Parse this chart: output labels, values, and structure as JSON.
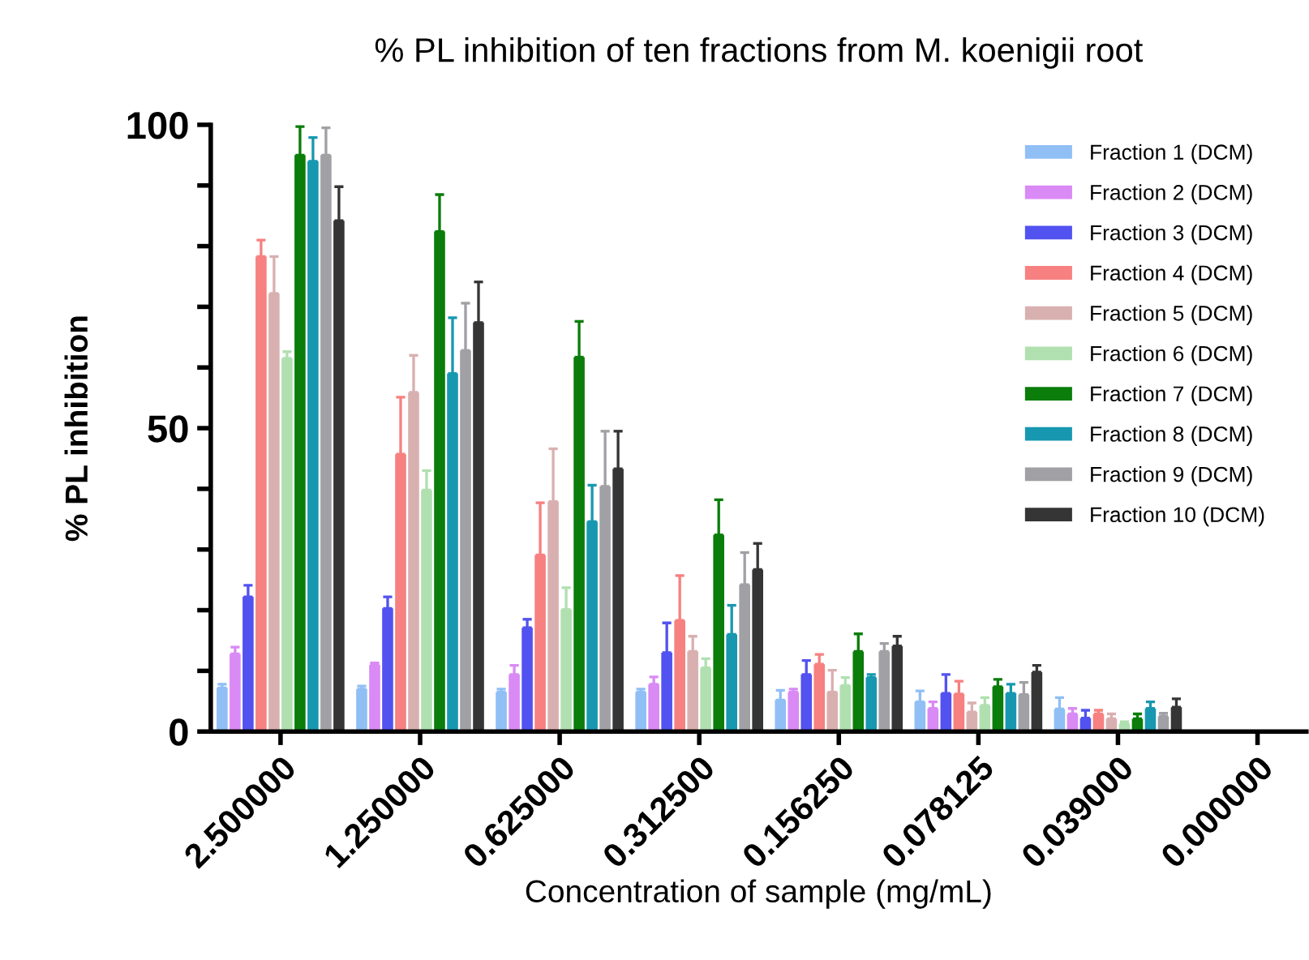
{
  "chart_data": {
    "type": "bar",
    "title": "% PL inhibition of ten fractions from M. koenigii root",
    "xlabel": "Concentration of sample (mg/mL)",
    "ylabel": "% PL inhibition",
    "categories": [
      "2.500000",
      "1.250000",
      "0.625000",
      "0.312500",
      "0.156250",
      "0.078125",
      "0.039000",
      "0.000000"
    ],
    "ylim": [
      0,
      100
    ],
    "yticks": [
      0,
      {
        "value": 10,
        "label": null
      },
      {
        "value": 20,
        "label": null
      },
      {
        "value": 30,
        "label": null
      },
      {
        "value": 40,
        "label": null
      },
      50,
      {
        "value": 60,
        "label": null
      },
      {
        "value": 70,
        "label": null
      },
      {
        "value": 80,
        "label": null
      },
      {
        "value": 90,
        "label": null
      },
      100
    ],
    "grid": false,
    "legend": "top right",
    "series": [
      {
        "name": "Fraction 1 (DCM)",
        "color": "#8fbff5",
        "values": [
          7.2,
          7.0,
          6.5,
          6.5,
          5.2,
          4.9,
          3.7,
          0
        ],
        "errors": [
          [
            7.2,
            7.8
          ],
          [
            7.0,
            7.5
          ],
          [
            6.5,
            7.0
          ],
          [
            6.5,
            7.0
          ],
          [
            5.2,
            6.8
          ],
          [
            4.9,
            6.7
          ],
          [
            3.7,
            5.6
          ],
          null
        ]
      },
      {
        "name": "Fraction 2 (DCM)",
        "color": "#d98af5",
        "values": [
          12.8,
          11.0,
          9.4,
          7.8,
          6.5,
          3.8,
          2.9,
          0
        ],
        "errors": [
          [
            12.8,
            13.9
          ],
          [
            11.0,
            11.3
          ],
          [
            9.4,
            10.9
          ],
          [
            7.8,
            9.0
          ],
          [
            6.5,
            7.0
          ],
          [
            3.8,
            4.9
          ],
          [
            2.9,
            3.8
          ],
          null
        ]
      },
      {
        "name": "Fraction 3 (DCM)",
        "color": "#5252f0",
        "values": [
          22.2,
          20.3,
          17.1,
          13.0,
          9.4,
          6.3,
          2.2,
          0
        ],
        "errors": [
          [
            22.2,
            24.1
          ],
          [
            20.3,
            22.2
          ],
          [
            17.1,
            18.5
          ],
          [
            13.0,
            17.9
          ],
          [
            9.4,
            11.7
          ],
          [
            6.3,
            9.4
          ],
          [
            2.2,
            3.5
          ],
          null
        ]
      },
      {
        "name": "Fraction 4 (DCM)",
        "color": "#f78080",
        "values": [
          78.3,
          45.7,
          29.1,
          18.3,
          11.1,
          6.2,
          2.9,
          0
        ],
        "errors": [
          [
            78.3,
            81.0
          ],
          [
            45.7,
            55.1
          ],
          [
            29.1,
            37.7
          ],
          [
            18.3,
            25.7
          ],
          [
            11.1,
            12.7
          ],
          [
            6.2,
            8.3
          ],
          [
            2.9,
            3.5
          ],
          null
        ]
      },
      {
        "name": "Fraction 5 (DCM)",
        "color": "#d9b0b0",
        "values": [
          72.2,
          55.9,
          37.9,
          13.2,
          6.5,
          3.2,
          2.1,
          0
        ],
        "errors": [
          [
            72.2,
            78.3
          ],
          [
            55.9,
            62.0
          ],
          [
            37.9,
            46.6
          ],
          [
            13.2,
            15.7
          ],
          [
            6.5,
            10.1
          ],
          [
            3.2,
            4.7
          ],
          [
            2.1,
            2.9
          ],
          null
        ]
      },
      {
        "name": "Fraction 6 (DCM)",
        "color": "#b0e0b0",
        "values": [
          61.5,
          39.8,
          20.1,
          10.5,
          7.6,
          4.3,
          1.3,
          0
        ],
        "errors": [
          [
            61.5,
            62.6
          ],
          [
            39.8,
            43.0
          ],
          [
            20.1,
            23.7
          ],
          [
            10.5,
            12.0
          ],
          [
            7.6,
            8.9
          ],
          [
            4.3,
            5.6
          ],
          [
            1.3,
            1.6
          ],
          null
        ]
      },
      {
        "name": "Fraction 7 (DCM)",
        "color": "#0a7d0a",
        "values": [
          95.0,
          82.4,
          61.7,
          32.4,
          13.2,
          7.4,
          2.1,
          0
        ],
        "errors": [
          [
            95.0,
            99.7
          ],
          [
            82.4,
            88.5
          ],
          [
            61.7,
            67.6
          ],
          [
            32.4,
            38.2
          ],
          [
            13.2,
            16.1
          ],
          [
            7.4,
            8.6
          ],
          [
            2.1,
            2.9
          ],
          null
        ]
      },
      {
        "name": "Fraction 8 (DCM)",
        "color": "#1798b0",
        "values": [
          94.0,
          59.0,
          34.6,
          16.0,
          8.9,
          6.3,
          3.8,
          0
        ],
        "errors": [
          [
            94.0,
            97.9
          ],
          [
            59.0,
            68.2
          ],
          [
            34.6,
            40.6
          ],
          [
            16.0,
            20.8
          ],
          [
            8.9,
            9.4
          ],
          [
            6.3,
            7.8
          ],
          [
            3.8,
            4.9
          ],
          null
        ]
      },
      {
        "name": "Fraction 9 (DCM)",
        "color": "#a0a0a5",
        "values": [
          95.0,
          62.8,
          40.4,
          24.2,
          13.2,
          6.1,
          2.5,
          0
        ],
        "errors": [
          [
            95.0,
            99.5
          ],
          [
            62.8,
            70.6
          ],
          [
            40.4,
            49.5
          ],
          [
            24.2,
            29.5
          ],
          [
            13.2,
            14.5
          ],
          [
            6.1,
            8.1
          ],
          [
            2.5,
            3.0
          ],
          null
        ]
      },
      {
        "name": "Fraction 10 (DCM)",
        "color": "#353535",
        "values": [
          84.2,
          67.4,
          43.3,
          26.7,
          14.1,
          9.8,
          4.0,
          0
        ],
        "errors": [
          [
            84.2,
            89.8
          ],
          [
            67.4,
            74.1
          ],
          [
            43.3,
            49.5
          ],
          [
            26.7,
            31.0
          ],
          [
            14.1,
            15.7
          ],
          [
            9.8,
            10.9
          ],
          [
            4.0,
            5.4
          ],
          null
        ]
      }
    ]
  }
}
